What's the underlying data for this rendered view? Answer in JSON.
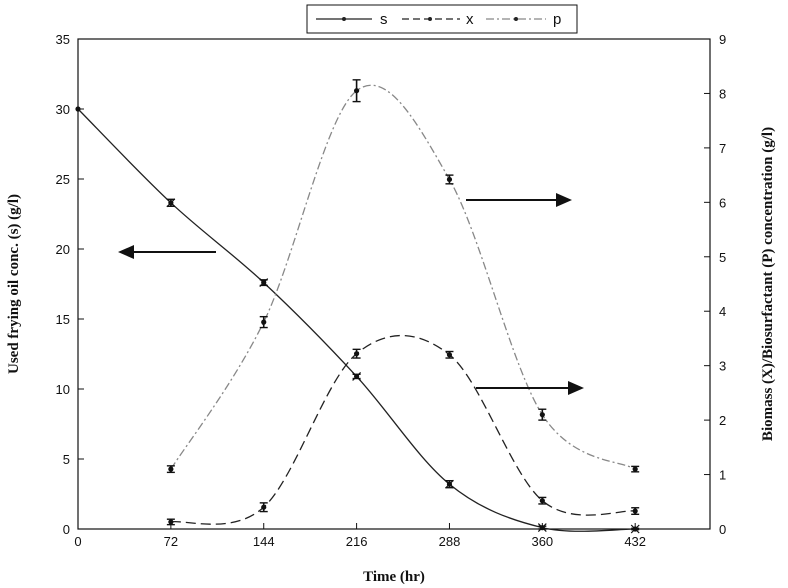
{
  "chart_data": {
    "type": "line",
    "xlabel": "Time (hr)",
    "ylabel_left": "Used frying oil conc. (s) (g/l)",
    "ylabel_right": "Biomass (X)/Biosurfactant (P) concentration (g/l)",
    "x_ticks": [
      0,
      72,
      144,
      216,
      288,
      360,
      432
    ],
    "xlim": [
      0,
      490
    ],
    "ylim_left": [
      0,
      35
    ],
    "ylim_right": [
      0,
      9
    ],
    "y_ticks_left": [
      0,
      5,
      10,
      15,
      20,
      25,
      30,
      35
    ],
    "y_ticks_right": [
      0,
      1,
      2,
      3,
      4,
      5,
      6,
      7,
      8,
      9
    ],
    "grid": false,
    "legend_position": "top-center",
    "series": [
      {
        "name": "s",
        "axis": "left",
        "style": "solid",
        "color": "#222222",
        "x": [
          0,
          72,
          144,
          216,
          288,
          360,
          432
        ],
        "y": [
          30.0,
          23.3,
          17.6,
          10.9,
          3.2,
          0.1,
          0.0
        ],
        "err": [
          0,
          0.25,
          0.2,
          0.15,
          0.25,
          0.1,
          0.05
        ]
      },
      {
        "name": "x",
        "axis": "right",
        "style": "dashed",
        "color": "#222222",
        "x": [
          72,
          144,
          216,
          288,
          360,
          432
        ],
        "y": [
          0.13,
          0.4,
          3.22,
          3.2,
          0.52,
          0.33
        ],
        "err": [
          0.05,
          0.08,
          0.08,
          0.06,
          0.06,
          0.06
        ]
      },
      {
        "name": "p",
        "axis": "right",
        "style": "dash-dot",
        "color": "#888888",
        "x": [
          72,
          144,
          216,
          288,
          360,
          432
        ],
        "y": [
          1.1,
          3.8,
          8.05,
          6.42,
          2.1,
          1.1
        ],
        "err": [
          0.06,
          0.1,
          0.2,
          0.08,
          0.1,
          0.05
        ]
      }
    ]
  }
}
